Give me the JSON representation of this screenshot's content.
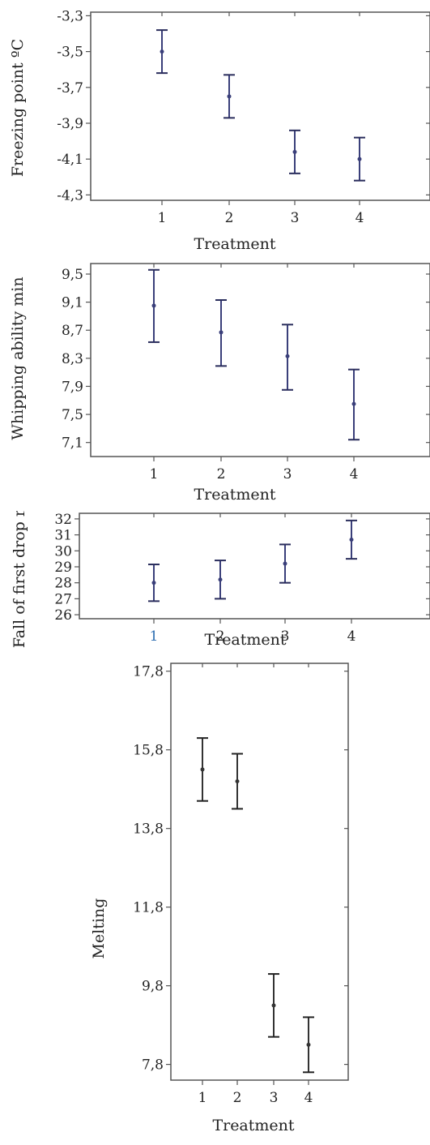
{
  "chart_data": [
    {
      "type": "scatter",
      "errorbars": true,
      "xlabel": "Treatment",
      "ylabel": "Freezing point ºC",
      "x": [
        "1",
        "2",
        "3",
        "4"
      ],
      "y": [
        -3.5,
        -3.75,
        -4.06,
        -4.1
      ],
      "y_low": [
        -3.62,
        -3.87,
        -4.18,
        -4.22
      ],
      "y_high": [
        -3.38,
        -3.63,
        -3.94,
        -3.98
      ],
      "yticks": [
        "-3,3",
        "-3,5",
        "-3,7",
        "-3,9",
        "-4,1",
        "-4,3"
      ],
      "ylim": [
        -4.33,
        -3.28
      ],
      "grid": false,
      "mark_color": "#3a3f7a",
      "cap_color": "#2a2d5c",
      "axis_color": "#555555"
    },
    {
      "type": "scatter",
      "errorbars": true,
      "xlabel": "Treatment",
      "ylabel": "Whipping ability min",
      "x": [
        "1",
        "2",
        "3",
        "4"
      ],
      "y": [
        9.05,
        8.67,
        8.33,
        7.65
      ],
      "y_low": [
        8.53,
        8.19,
        7.85,
        7.14
      ],
      "y_high": [
        9.56,
        9.13,
        8.78,
        8.14
      ],
      "yticks": [
        "9,5",
        "9,1",
        "8,7",
        "8,3",
        "7,9",
        "7,5",
        "7,1"
      ],
      "ylim": [
        6.9,
        9.65
      ],
      "grid": false,
      "mark_color": "#3a3f7a",
      "cap_color": "#2a2d5c",
      "axis_color": "#555555"
    },
    {
      "type": "scatter",
      "errorbars": true,
      "xlabel": "Treatment",
      "ylabel": "Fall of first drop min",
      "x": [
        "1",
        "2",
        "3",
        "4"
      ],
      "y": [
        28.0,
        28.2,
        29.2,
        30.7
      ],
      "y_low": [
        26.85,
        27.0,
        28.0,
        29.5
      ],
      "y_high": [
        29.15,
        29.4,
        30.4,
        31.9
      ],
      "yticks": [
        "32",
        "31",
        "30",
        "29",
        "28",
        "27",
        "26"
      ],
      "ylim": [
        25.75,
        32.35
      ],
      "grid": false,
      "mark_color": "#3a3f7a",
      "cap_color": "#2a2d5c",
      "axis_color": "#555555",
      "first_tick_color": "#2b6cb0"
    },
    {
      "type": "scatter",
      "errorbars": true,
      "xlabel": "Treatment",
      "ylabel": "Melting",
      "x": [
        "1",
        "2",
        "3",
        "4"
      ],
      "y": [
        15.3,
        15.0,
        9.3,
        8.3
      ],
      "y_low": [
        14.5,
        14.3,
        8.5,
        7.6
      ],
      "y_high": [
        16.1,
        15.7,
        10.1,
        9.0
      ],
      "yticks": [
        "17,8",
        "15,8",
        "13,8",
        "11,8",
        "9,8",
        "7,8"
      ],
      "ylim": [
        7.4,
        18.0
      ],
      "grid": false,
      "mark_color": "#333333",
      "cap_color": "#222222",
      "axis_color": "#555555"
    }
  ]
}
